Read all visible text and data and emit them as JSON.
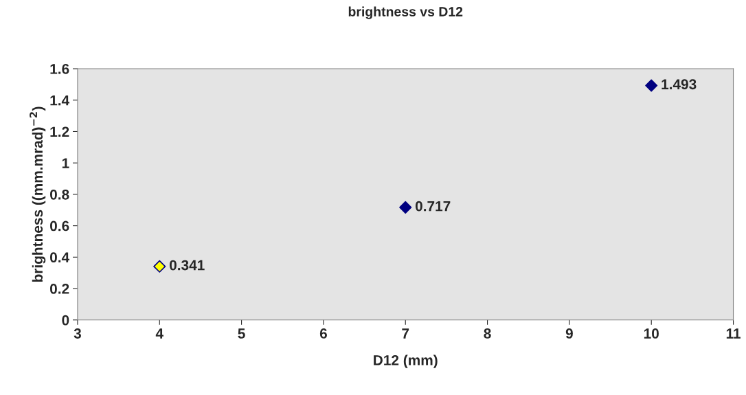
{
  "chart_data": {
    "type": "scatter",
    "title": "brightness vs D12",
    "xlabel": "D12 (mm)",
    "ylabel": "brightness ((mm.mrad)$^{−2}$)",
    "x": [
      4,
      7,
      10
    ],
    "values": [
      0.341,
      0.717,
      1.493
    ],
    "colors": [
      "#ffff00",
      "#000080",
      "#000080"
    ],
    "xlim": [
      3,
      11
    ],
    "xticks": [
      3,
      4,
      5,
      6,
      7,
      8,
      9,
      10,
      11
    ],
    "ylim": [
      0,
      1.6
    ],
    "yticks": [
      0,
      0.2,
      0.4,
      0.6,
      0.8,
      1,
      1.2,
      1.4,
      1.6
    ],
    "marker": "diamond",
    "data_labels": true,
    "grid": false,
    "legend": false
  }
}
